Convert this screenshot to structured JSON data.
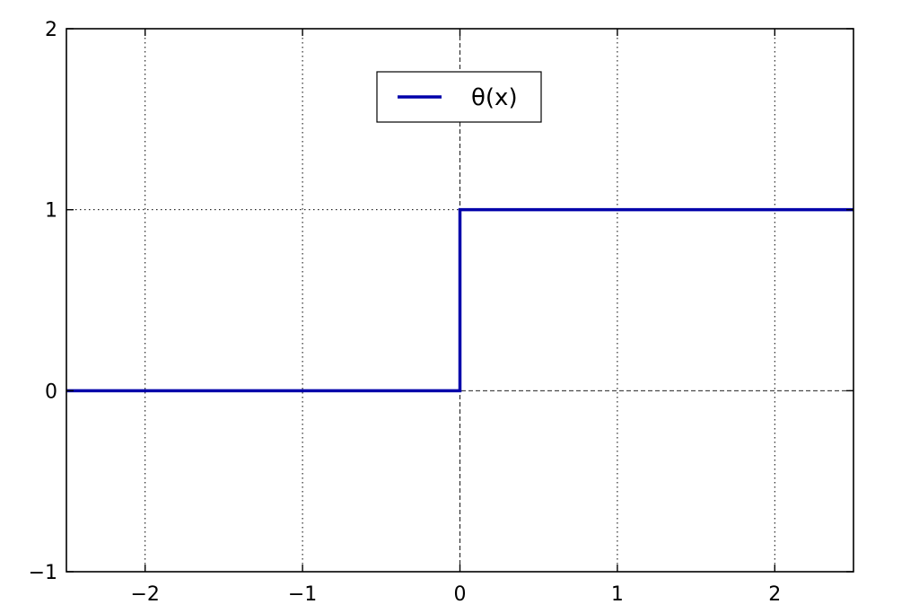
{
  "chart_data": {
    "type": "line",
    "title": "",
    "xlabel": "",
    "ylabel": "",
    "xlim": [
      -2.5,
      2.5
    ],
    "ylim": [
      -1,
      2
    ],
    "xticks": [
      -2,
      -1,
      0,
      1,
      2
    ],
    "xtick_labels": [
      "−2",
      "−1",
      "0",
      "1",
      "2"
    ],
    "yticks": [
      -1,
      0,
      1,
      2
    ],
    "ytick_labels": [
      "−1",
      "0",
      "1",
      "2"
    ],
    "grid": true,
    "axis_lines": {
      "x": 0,
      "y": 0
    },
    "legend": {
      "position": "upper-center"
    },
    "series": [
      {
        "name": "θ(x)",
        "color": "#0000aa",
        "step": true,
        "x": [
          -2.5,
          0,
          0,
          2.5
        ],
        "y": [
          0,
          0,
          1,
          1
        ]
      }
    ]
  }
}
